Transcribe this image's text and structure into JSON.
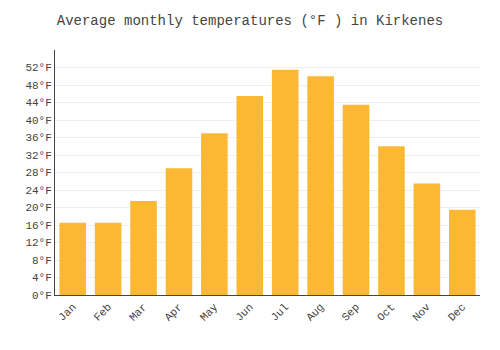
{
  "chart_data": {
    "type": "bar",
    "title": "Average monthly temperatures (°F ) in Kirkenes",
    "categories": [
      "Jan",
      "Feb",
      "Mar",
      "Apr",
      "May",
      "Jun",
      "Jul",
      "Aug",
      "Sep",
      "Oct",
      "Nov",
      "Dec"
    ],
    "values": [
      16.5,
      16.5,
      21.5,
      29.0,
      37.0,
      45.5,
      51.5,
      50.0,
      43.5,
      34.0,
      25.5,
      19.5
    ],
    "color": "#FDB833",
    "ylim": [
      0,
      56
    ],
    "yticks": [
      {
        "value": 0,
        "label": "0°F"
      },
      {
        "value": 4,
        "label": "4°F"
      },
      {
        "value": 8,
        "label": "8°F"
      },
      {
        "value": 12,
        "label": "12°F"
      },
      {
        "value": 16,
        "label": "16°F"
      },
      {
        "value": 20,
        "label": "20°F"
      },
      {
        "value": 24,
        "label": "24°F"
      },
      {
        "value": 28,
        "label": "28°F"
      },
      {
        "value": 32,
        "label": "32°F"
      },
      {
        "value": 36,
        "label": "36°F"
      },
      {
        "value": 40,
        "label": "40°F"
      },
      {
        "value": 44,
        "label": "44°F"
      },
      {
        "value": 48,
        "label": "48°F"
      },
      {
        "value": 52,
        "label": "52°F"
      }
    ],
    "grid": true
  }
}
